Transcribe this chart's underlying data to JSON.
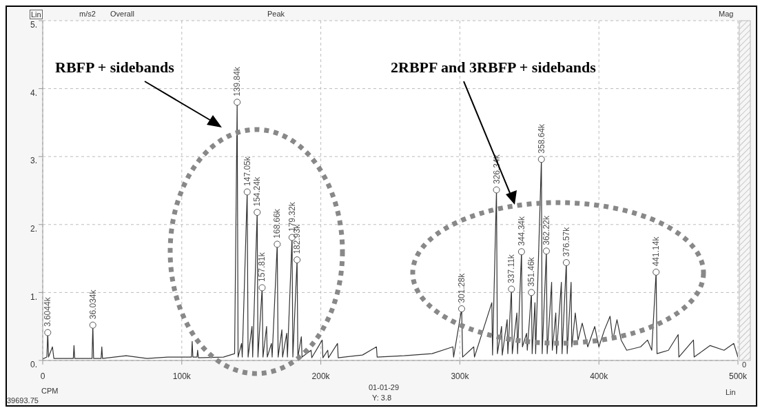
{
  "chart_data": {
    "type": "line",
    "xlabel": "CPM",
    "ylabel": "m/s2",
    "annotations": [
      "RBFP + sidebands",
      "2RBPF and 3RBFP + sidebands",
      "Lin",
      "Overall",
      "Peak",
      "Mag",
      "0",
      "01-01-29",
      "Y: 3.8",
      "Lin",
      "39693.75",
      {
        "text": "3.6044k",
        "x": 3604,
        "y": 0.41
      },
      {
        "text": "36.034k",
        "x": 36034,
        "y": 0.52
      },
      {
        "text": "139.84k",
        "x": 139840,
        "y": 3.8
      },
      {
        "text": "147.05k",
        "x": 147050,
        "y": 2.48
      },
      {
        "text": "154.24k",
        "x": 154240,
        "y": 2.18
      },
      {
        "text": "157.81k",
        "x": 157810,
        "y": 1.07
      },
      {
        "text": "168.66k",
        "x": 168660,
        "y": 1.71
      },
      {
        "text": "179.32k",
        "x": 179320,
        "y": 1.81
      },
      {
        "text": "182.93k",
        "x": 182930,
        "y": 1.48
      },
      {
        "text": "301.28k",
        "x": 301280,
        "y": 0.76
      },
      {
        "text": "326.34k",
        "x": 326340,
        "y": 2.51
      },
      {
        "text": "337.11k",
        "x": 337110,
        "y": 1.05
      },
      {
        "text": "344.34k",
        "x": 344340,
        "y": 1.6
      },
      {
        "text": "351.46k",
        "x": 351460,
        "y": 1.0
      },
      {
        "text": "358.64k",
        "x": 358640,
        "y": 2.96
      },
      {
        "text": "362.22k",
        "x": 362220,
        "y": 1.61
      },
      {
        "text": "376.57k",
        "x": 376570,
        "y": 1.44
      },
      {
        "text": "441.14k",
        "x": 441140,
        "y": 1.3
      }
    ],
    "xlim": [
      0,
      500000
    ],
    "xticks": [
      {
        "value": 0,
        "label": "0"
      },
      {
        "value": 100000,
        "label": "100k"
      },
      {
        "value": 200000,
        "label": "200k"
      },
      {
        "value": 300000,
        "label": "300k"
      },
      {
        "value": 400000,
        "label": "400k"
      },
      {
        "value": 500000,
        "label": "500k"
      }
    ],
    "ylim": [
      0,
      5
    ],
    "yticks": [
      {
        "value": 0,
        "label": "0."
      },
      {
        "value": 1,
        "label": "1."
      },
      {
        "value": 2,
        "label": "2."
      },
      {
        "value": 3,
        "label": "3."
      },
      {
        "value": 4,
        "label": "4."
      },
      {
        "value": 5,
        "label": "5."
      }
    ],
    "grid": true,
    "series": [
      {
        "color": "#333333",
        "line_style": "solid",
        "marker": "none",
        "x": [
          0,
          3000,
          3604,
          4200,
          7000,
          8000,
          22000,
          22500,
          23000,
          35500,
          36034,
          36600,
          42000,
          42500,
          43000,
          60000,
          75000,
          90000,
          107000,
          107500,
          108000,
          111000,
          111400,
          112000,
          130000,
          138000,
          139840,
          140500,
          143000,
          143500,
          147050,
          147700,
          150500,
          151000,
          154240,
          154800,
          157810,
          158400,
          161000,
          161500,
          164500,
          165000,
          168660,
          169300,
          172000,
          172500,
          175500,
          176000,
          179320,
          179900,
          182930,
          183500,
          186000,
          186500,
          193000,
          193500,
          201000,
          201500,
          205000,
          205500,
          212000,
          212500,
          230000,
          240000,
          240500,
          260000,
          280000,
          295000,
          295500,
          301280,
          302000,
          310000,
          310500,
          323000,
          323500,
          326340,
          327000,
          330000,
          330500,
          334000,
          334500,
          337110,
          337700,
          341000,
          341500,
          344340,
          345000,
          348000,
          348500,
          351460,
          352000,
          354000,
          354500,
          358640,
          359200,
          362220,
          362800,
          366000,
          366500,
          369000,
          369500,
          373000,
          373500,
          376570,
          377200,
          380000,
          380500,
          383000,
          385000,
          388000,
          392000,
          397000,
          400000,
          404000,
          408000,
          410000,
          413000,
          416000,
          420000,
          430000,
          435000,
          438000,
          441140,
          441800,
          450000,
          457000,
          457500,
          468000,
          468500,
          480000,
          490000,
          497000,
          500000
        ],
        "values": [
          0.02,
          0.05,
          0.41,
          0.05,
          0.2,
          0.03,
          0.03,
          0.22,
          0.03,
          0.03,
          0.52,
          0.03,
          0.03,
          0.2,
          0.03,
          0.07,
          0.03,
          0.05,
          0.05,
          0.28,
          0.05,
          0.05,
          0.15,
          0.04,
          0.05,
          0.1,
          3.8,
          0.05,
          0.25,
          0.05,
          2.48,
          0.05,
          0.5,
          0.05,
          2.18,
          0.05,
          1.07,
          0.05,
          0.5,
          0.05,
          0.25,
          0.05,
          1.71,
          0.05,
          0.45,
          0.05,
          0.4,
          0.05,
          1.81,
          0.05,
          1.48,
          0.05,
          0.35,
          0.05,
          0.15,
          0.04,
          0.3,
          0.04,
          0.15,
          0.04,
          0.25,
          0.04,
          0.08,
          0.2,
          0.05,
          0.07,
          0.1,
          0.2,
          0.05,
          0.76,
          0.05,
          0.2,
          0.05,
          0.85,
          0.08,
          2.51,
          0.1,
          0.5,
          0.08,
          0.6,
          0.1,
          1.05,
          0.1,
          0.7,
          0.1,
          1.6,
          0.2,
          0.4,
          0.15,
          1.0,
          0.1,
          0.85,
          0.1,
          2.96,
          0.1,
          1.61,
          0.1,
          1.15,
          0.15,
          0.7,
          0.1,
          1.15,
          0.1,
          1.44,
          0.1,
          1.15,
          0.2,
          0.7,
          0.3,
          0.55,
          0.2,
          0.5,
          0.2,
          0.45,
          0.65,
          0.3,
          0.6,
          0.3,
          0.15,
          0.2,
          0.3,
          0.15,
          1.3,
          0.1,
          0.15,
          0.38,
          0.05,
          0.3,
          0.05,
          0.22,
          0.15,
          0.25,
          0.05
        ]
      },
      {
        "type": "scatter",
        "color": "#555555",
        "marker": "circle",
        "x": [
          3604,
          36034,
          139840,
          147050,
          154240,
          157810,
          168660,
          179320,
          182930,
          301280,
          326340,
          337110,
          344340,
          351460,
          358640,
          362220,
          376570,
          441140
        ],
        "values": [
          0.41,
          0.52,
          3.8,
          2.48,
          2.18,
          1.07,
          1.71,
          1.81,
          1.48,
          0.76,
          2.51,
          1.05,
          1.6,
          1.0,
          2.96,
          1.61,
          1.44,
          1.3
        ]
      }
    ]
  }
}
